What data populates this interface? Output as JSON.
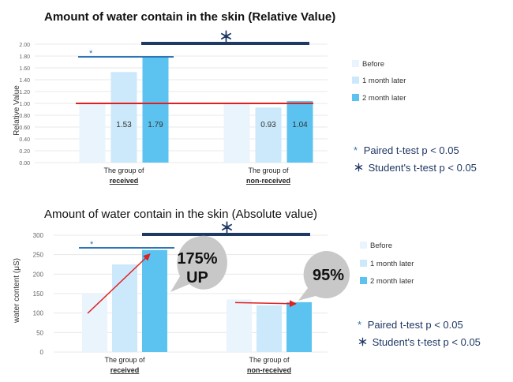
{
  "chart_data": [
    {
      "type": "bar",
      "title": "Amount of water contain in the skin (Relative Value)",
      "ylabel": "Relative Value",
      "ylim": [
        0,
        2.0
      ],
      "yticks": [
        "0.00",
        "0.20",
        "0.40",
        "0.60",
        "0.80",
        "1.00",
        "1.20",
        "1.40",
        "1.60",
        "1.80",
        "2.00"
      ],
      "categories": [
        {
          "line1": "The group of",
          "line2": "received"
        },
        {
          "line1": "The group of",
          "line2": "non-received"
        }
      ],
      "series": [
        {
          "name": "Before",
          "color": "#e9f4fd",
          "values": [
            1.0,
            1.0
          ],
          "labels": [
            "",
            ""
          ]
        },
        {
          "name": "1 month later",
          "color": "#cce9fb",
          "values": [
            1.53,
            0.93
          ],
          "labels": [
            "1.53",
            "0.93"
          ]
        },
        {
          "name": "2 month later",
          "color": "#5cc3f0",
          "values": [
            1.79,
            1.04
          ],
          "labels": [
            "1.79",
            "1.04"
          ]
        }
      ],
      "reference_line": {
        "value": 1.0,
        "color": "#e02020"
      },
      "significance": {
        "paired_marker": "*",
        "student_marker": "＊"
      },
      "notes": {
        "paired": "Paired t-test  p < 0.05",
        "student": "Student's t-test p < 0.05"
      }
    },
    {
      "type": "bar",
      "title": "Amount of water contain in the skin (Absolute value)",
      "ylabel": "water content (μS)",
      "ylim": [
        0,
        300
      ],
      "yticks": [
        "0",
        "50",
        "100",
        "150",
        "200",
        "250",
        "300"
      ],
      "categories": [
        {
          "line1": "The group of",
          "line2": "received"
        },
        {
          "line1": "The group of",
          "line2": "non-received"
        }
      ],
      "series": [
        {
          "name": "Before",
          "color": "#e9f4fd",
          "values": [
            150,
            135
          ]
        },
        {
          "name": "1 month later",
          "color": "#cce9fb",
          "values": [
            225,
            120
          ]
        },
        {
          "name": "2 month later",
          "color": "#5cc3f0",
          "values": [
            262,
            128
          ]
        }
      ],
      "callouts": [
        "175%\nUP",
        "95%"
      ],
      "significance": {
        "paired_marker": "*",
        "student_marker": "＊"
      },
      "notes": {
        "paired": "Paired t-test  p < 0.05",
        "student": "Student's t-test p < 0.05"
      }
    }
  ],
  "colors": {
    "accent_dark": "#1f3864",
    "accent_blue": "#2e75b6",
    "red": "#e02020"
  }
}
